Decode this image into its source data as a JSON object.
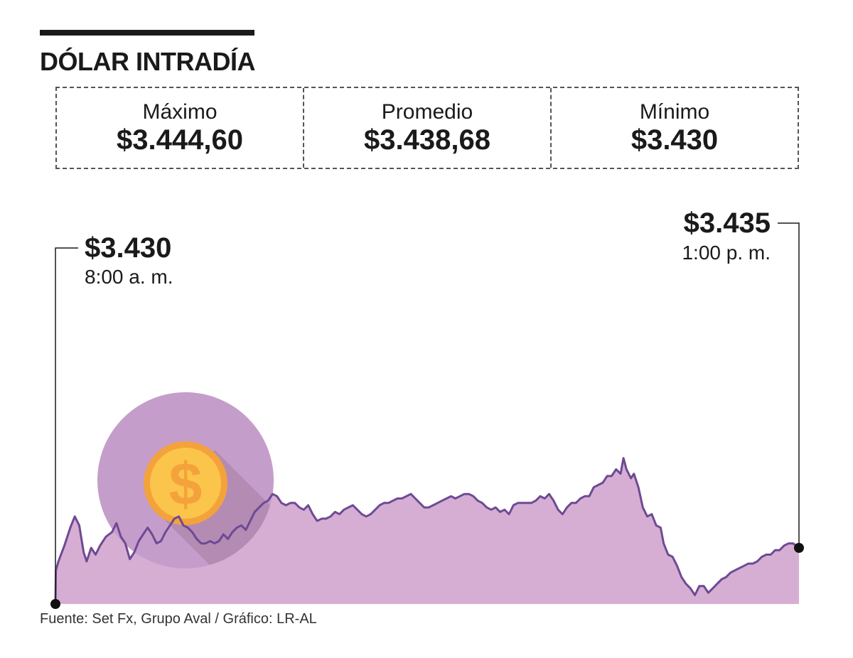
{
  "title": "DÓLAR INTRADÍA",
  "stats": {
    "max": {
      "label": "Máximo",
      "value": "$3.444,60"
    },
    "avg": {
      "label": "Promedio",
      "value": "$3.438,68"
    },
    "min": {
      "label": "Mínimo",
      "value": "$3.430"
    }
  },
  "colors": {
    "area": "#d6aed3",
    "line": "#6d4a94",
    "circle": "#c59dca",
    "coin": "#f4a23c",
    "coin_inner": "#fbc44b"
  },
  "chart_data": {
    "type": "area",
    "title": "DÓLAR INTRADÍA",
    "xlabel": "",
    "ylabel": "",
    "ylim": [
      3420,
      3446
    ],
    "xrange_hours": [
      8,
      13
    ],
    "points": [
      [
        8.0,
        3430.0
      ],
      [
        8.003,
        3433.0
      ],
      [
        8.02,
        3433.8
      ],
      [
        8.06,
        3435.2
      ],
      [
        8.1,
        3436.8
      ],
      [
        8.13,
        3437.8
      ],
      [
        8.16,
        3437.0
      ],
      [
        8.19,
        3434.6
      ],
      [
        8.21,
        3433.8
      ],
      [
        8.24,
        3435.0
      ],
      [
        8.27,
        3434.4
      ],
      [
        8.3,
        3435.2
      ],
      [
        8.34,
        3436.0
      ],
      [
        8.38,
        3436.4
      ],
      [
        8.41,
        3437.2
      ],
      [
        8.44,
        3436.0
      ],
      [
        8.47,
        3435.4
      ],
      [
        8.5,
        3434.0
      ],
      [
        8.53,
        3434.6
      ],
      [
        8.56,
        3435.6
      ],
      [
        8.59,
        3436.2
      ],
      [
        8.62,
        3436.8
      ],
      [
        8.65,
        3436.2
      ],
      [
        8.68,
        3435.4
      ],
      [
        8.71,
        3435.6
      ],
      [
        8.74,
        3436.4
      ],
      [
        8.77,
        3437.0
      ],
      [
        8.8,
        3437.6
      ],
      [
        8.83,
        3437.8
      ],
      [
        8.86,
        3437.0
      ],
      [
        8.89,
        3436.8
      ],
      [
        8.92,
        3436.4
      ],
      [
        8.95,
        3435.8
      ],
      [
        8.98,
        3435.4
      ],
      [
        9.01,
        3435.4
      ],
      [
        9.04,
        3435.6
      ],
      [
        9.07,
        3435.4
      ],
      [
        9.1,
        3435.6
      ],
      [
        9.13,
        3436.2
      ],
      [
        9.16,
        3435.8
      ],
      [
        9.19,
        3436.4
      ],
      [
        9.22,
        3436.8
      ],
      [
        9.25,
        3437.0
      ],
      [
        9.28,
        3436.6
      ],
      [
        9.31,
        3437.4
      ],
      [
        9.34,
        3438.2
      ],
      [
        9.37,
        3438.6
      ],
      [
        9.4,
        3439.0
      ],
      [
        9.43,
        3439.2
      ],
      [
        9.46,
        3439.8
      ],
      [
        9.49,
        3439.6
      ],
      [
        9.52,
        3439.0
      ],
      [
        9.55,
        3438.8
      ],
      [
        9.58,
        3439.0
      ],
      [
        9.61,
        3439.0
      ],
      [
        9.64,
        3438.6
      ],
      [
        9.67,
        3438.4
      ],
      [
        9.7,
        3438.8
      ],
      [
        9.73,
        3438.0
      ],
      [
        9.76,
        3437.4
      ],
      [
        9.79,
        3437.6
      ],
      [
        9.82,
        3437.6
      ],
      [
        9.85,
        3437.8
      ],
      [
        9.88,
        3438.2
      ],
      [
        9.91,
        3438.0
      ],
      [
        9.94,
        3438.4
      ],
      [
        9.97,
        3438.6
      ],
      [
        10.0,
        3438.8
      ],
      [
        10.03,
        3438.4
      ],
      [
        10.06,
        3438.0
      ],
      [
        10.09,
        3437.8
      ],
      [
        10.12,
        3438.0
      ],
      [
        10.15,
        3438.4
      ],
      [
        10.18,
        3438.8
      ],
      [
        10.21,
        3439.0
      ],
      [
        10.24,
        3439.0
      ],
      [
        10.27,
        3439.2
      ],
      [
        10.3,
        3439.4
      ],
      [
        10.33,
        3439.4
      ],
      [
        10.36,
        3439.6
      ],
      [
        10.39,
        3439.8
      ],
      [
        10.42,
        3439.4
      ],
      [
        10.45,
        3439.0
      ],
      [
        10.48,
        3438.6
      ],
      [
        10.51,
        3438.6
      ],
      [
        10.54,
        3438.8
      ],
      [
        10.57,
        3439.0
      ],
      [
        10.6,
        3439.2
      ],
      [
        10.63,
        3439.4
      ],
      [
        10.66,
        3439.6
      ],
      [
        10.69,
        3439.4
      ],
      [
        10.72,
        3439.6
      ],
      [
        10.75,
        3439.8
      ],
      [
        10.78,
        3439.8
      ],
      [
        10.81,
        3439.6
      ],
      [
        10.84,
        3439.2
      ],
      [
        10.87,
        3439.0
      ],
      [
        10.9,
        3438.6
      ],
      [
        10.93,
        3438.4
      ],
      [
        10.96,
        3438.6
      ],
      [
        10.99,
        3438.2
      ],
      [
        11.02,
        3438.4
      ],
      [
        11.05,
        3438.0
      ],
      [
        11.08,
        3438.8
      ],
      [
        11.11,
        3439.0
      ],
      [
        11.14,
        3439.0
      ],
      [
        11.17,
        3439.0
      ],
      [
        11.2,
        3439.0
      ],
      [
        11.23,
        3439.2
      ],
      [
        11.26,
        3439.6
      ],
      [
        11.29,
        3439.4
      ],
      [
        11.32,
        3439.8
      ],
      [
        11.35,
        3439.2
      ],
      [
        11.38,
        3438.4
      ],
      [
        11.41,
        3438.0
      ],
      [
        11.44,
        3438.6
      ],
      [
        11.47,
        3439.0
      ],
      [
        11.5,
        3439.0
      ],
      [
        11.53,
        3439.4
      ],
      [
        11.56,
        3439.6
      ],
      [
        11.59,
        3439.6
      ],
      [
        11.62,
        3440.4
      ],
      [
        11.65,
        3440.6
      ],
      [
        11.68,
        3440.8
      ],
      [
        11.71,
        3441.4
      ],
      [
        11.74,
        3441.4
      ],
      [
        11.77,
        3442.0
      ],
      [
        11.8,
        3441.6
      ],
      [
        11.82,
        3443.0
      ],
      [
        11.84,
        3442.0
      ],
      [
        11.87,
        3441.2
      ],
      [
        11.89,
        3441.6
      ],
      [
        11.92,
        3440.4
      ],
      [
        11.95,
        3438.6
      ],
      [
        11.98,
        3437.8
      ],
      [
        12.01,
        3438.0
      ],
      [
        12.04,
        3437.0
      ],
      [
        12.07,
        3436.8
      ],
      [
        12.09,
        3435.4
      ],
      [
        12.12,
        3434.4
      ],
      [
        12.15,
        3434.2
      ],
      [
        12.18,
        3433.4
      ],
      [
        12.21,
        3432.4
      ],
      [
        12.24,
        3431.8
      ],
      [
        12.27,
        3431.4
      ],
      [
        12.3,
        3430.8
      ],
      [
        12.33,
        3431.6
      ],
      [
        12.36,
        3431.6
      ],
      [
        12.39,
        3431.0
      ],
      [
        12.42,
        3431.4
      ],
      [
        12.45,
        3431.8
      ],
      [
        12.48,
        3432.2
      ],
      [
        12.51,
        3432.4
      ],
      [
        12.54,
        3432.8
      ],
      [
        12.57,
        3433.0
      ],
      [
        12.6,
        3433.2
      ],
      [
        12.63,
        3433.4
      ],
      [
        12.66,
        3433.6
      ],
      [
        12.69,
        3433.6
      ],
      [
        12.72,
        3433.8
      ],
      [
        12.75,
        3434.2
      ],
      [
        12.78,
        3434.4
      ],
      [
        12.81,
        3434.4
      ],
      [
        12.84,
        3434.8
      ],
      [
        12.87,
        3434.8
      ],
      [
        12.9,
        3435.2
      ],
      [
        12.93,
        3435.4
      ],
      [
        12.96,
        3435.4
      ],
      [
        13.0,
        3435.0
      ]
    ],
    "annotations": [
      {
        "value": "$3.430",
        "time": "8:00 a. m.",
        "x": 8.0,
        "y": 3430.0,
        "side": "left"
      },
      {
        "value": "$3.435",
        "time": "1:00 p. m.",
        "x": 13.0,
        "y": 3435.0,
        "side": "right"
      }
    ]
  },
  "source": "Fuente: Set Fx, Grupo Aval / Gráfico: LR-AL"
}
